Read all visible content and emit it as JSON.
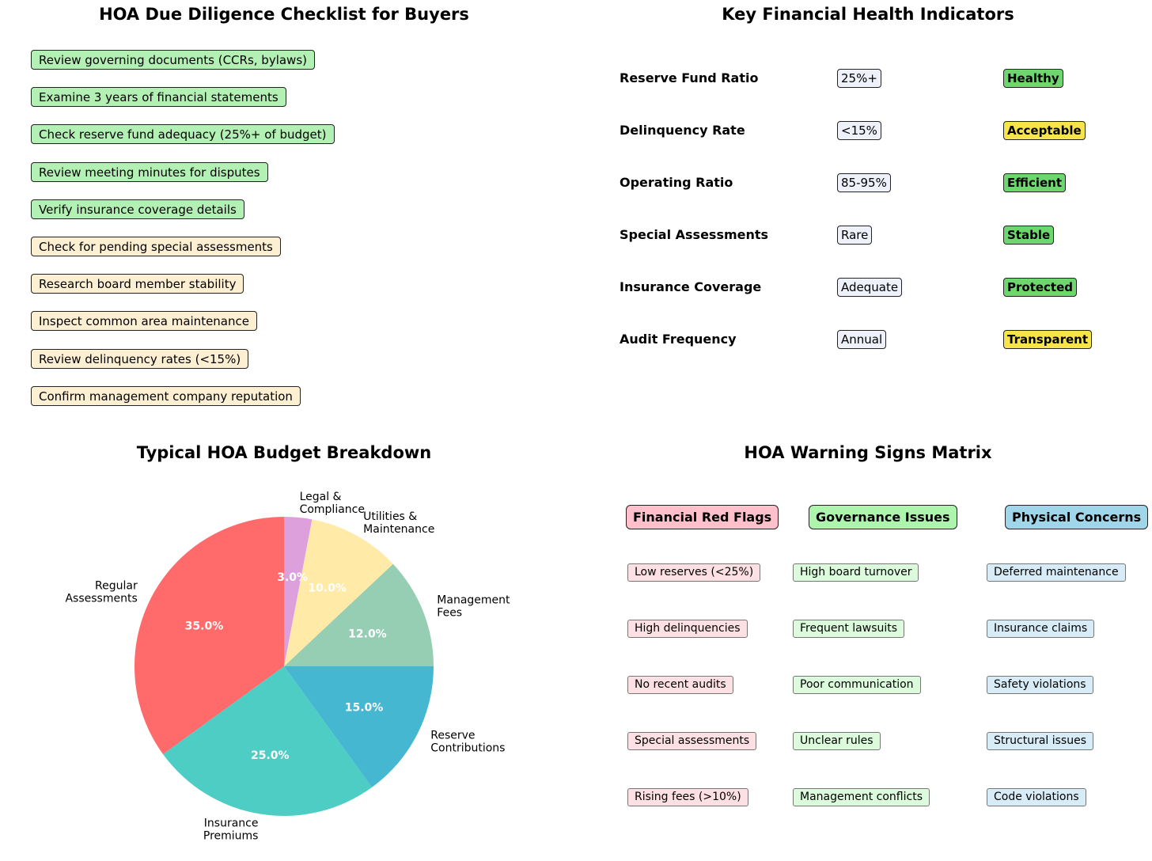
{
  "checklist": {
    "title": "HOA Due Diligence Checklist for Buyers",
    "items": [
      {
        "text": "Review governing documents (CCRs, bylaws)",
        "status": "green"
      },
      {
        "text": "Examine 3 years of financial statements",
        "status": "green"
      },
      {
        "text": "Check reserve fund adequacy (25%+ of budget)",
        "status": "green"
      },
      {
        "text": "Review meeting minutes for disputes",
        "status": "green"
      },
      {
        "text": "Verify insurance coverage details",
        "status": "green"
      },
      {
        "text": "Check for pending special assessments",
        "status": "yellow"
      },
      {
        "text": "Research board member stability",
        "status": "yellow"
      },
      {
        "text": "Inspect common area maintenance",
        "status": "yellow"
      },
      {
        "text": "Review delinquency rates (<15%)",
        "status": "yellow"
      },
      {
        "text": "Confirm management company reputation",
        "status": "yellow"
      }
    ]
  },
  "indicators": {
    "title": "Key Financial Health Indicators",
    "rows": [
      {
        "name": "Reserve Fund Ratio",
        "value": "25%+",
        "status": "Healthy",
        "level": "good"
      },
      {
        "name": "Delinquency Rate",
        "value": "<15%",
        "status": "Acceptable",
        "level": "warn"
      },
      {
        "name": "Operating Ratio",
        "value": "85-95%",
        "status": "Efficient",
        "level": "good"
      },
      {
        "name": "Special Assessments",
        "value": "Rare",
        "status": "Stable",
        "level": "good"
      },
      {
        "name": "Insurance Coverage",
        "value": "Adequate",
        "status": "Protected",
        "level": "good"
      },
      {
        "name": "Audit Frequency",
        "value": "Annual",
        "status": "Transparent",
        "level": "warn"
      }
    ]
  },
  "colors": {
    "green_box": "#b3f0b3",
    "yellow_box": "#fdefd2",
    "status_good": "#6ed66e",
    "status_warn": "#f7e44a"
  },
  "chart_data": {
    "type": "pie",
    "title": "Typical HOA Budget Breakdown",
    "slices": [
      {
        "label": "Regular\nAssessments",
        "value": 35.0,
        "pct_label": "35.0%",
        "color": "#ff6b6b"
      },
      {
        "label": "Insurance\nPremiums",
        "value": 25.0,
        "pct_label": "25.0%",
        "color": "#4ecdc4"
      },
      {
        "label": "Reserve\nContributions",
        "value": 15.0,
        "pct_label": "15.0%",
        "color": "#45b7d1"
      },
      {
        "label": "Management\nFees",
        "value": 12.0,
        "pct_label": "12.0%",
        "color": "#96ceb4"
      },
      {
        "label": "Utilities &\nMaintenance",
        "value": 10.0,
        "pct_label": "10.0%",
        "color": "#ffeaa7"
      },
      {
        "label": "Legal &\nCompliance",
        "value": 3.0,
        "pct_label": "3.0%",
        "color": "#dda0dd"
      }
    ],
    "start_angle": 90,
    "direction": "counterclockwise"
  },
  "warning_matrix": {
    "title": "HOA Warning Signs Matrix",
    "columns": [
      {
        "header": "Financial Red Flags",
        "header_color": "#ffc0cb",
        "items": [
          "Low reserves (<25%)",
          "High delinquencies",
          "No recent audits",
          "Special assessments",
          "Rising fees (>10%)"
        ]
      },
      {
        "header": "Governance Issues",
        "header_color": "#adf5ad",
        "items": [
          "High board turnover",
          "Frequent lawsuits",
          "Poor communication",
          "Unclear rules",
          "Management conflicts"
        ]
      },
      {
        "header": "Physical Concerns",
        "header_color": "#9fd6ea",
        "items": [
          "Deferred maintenance",
          "Insurance claims",
          "Safety violations",
          "Structural issues",
          "Code violations"
        ]
      }
    ]
  }
}
